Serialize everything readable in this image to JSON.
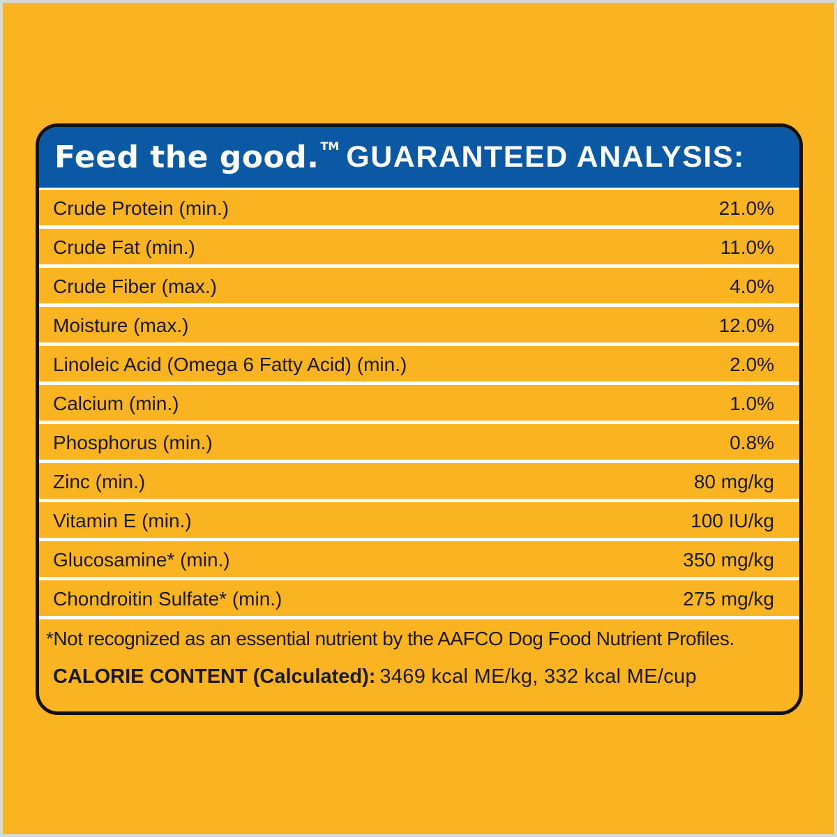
{
  "colors": {
    "background": "#fab321",
    "header_blue": "#0b59a5",
    "border": "#111111",
    "divider": "#ffffff",
    "text": "#1a1a1a"
  },
  "header": {
    "brand_text": "Feed the good.",
    "trademark": "TM",
    "title": "GUARANTEED ANALYSIS:"
  },
  "analysis": [
    {
      "label": "Crude Protein (min.)",
      "value": "21.0%"
    },
    {
      "label": "Crude Fat (min.)",
      "value": "11.0%"
    },
    {
      "label": "Crude Fiber (max.)",
      "value": "4.0%"
    },
    {
      "label": "Moisture (max.)",
      "value": "12.0%"
    },
    {
      "label": "Linoleic Acid (Omega 6 Fatty Acid) (min.)",
      "value": "2.0%"
    },
    {
      "label": "Calcium (min.)",
      "value": "1.0%"
    },
    {
      "label": "Phosphorus (min.)",
      "value": "0.8%"
    },
    {
      "label": "Zinc (min.)",
      "value": "80 mg/kg"
    },
    {
      "label": "Vitamin E (min.)",
      "value": "100 IU/kg"
    },
    {
      "label": "Glucosamine* (min.)",
      "value": "350 mg/kg"
    },
    {
      "label": "Chondroitin Sulfate* (min.)",
      "value": "275 mg/kg"
    }
  ],
  "footnote": "*Not recognized as an essential nutrient by the AAFCO Dog Food Nutrient Profiles.",
  "calorie": {
    "label": "CALORIE CONTENT (Calculated):",
    "value": "3469 kcal ME/kg, 332 kcal ME/cup"
  }
}
